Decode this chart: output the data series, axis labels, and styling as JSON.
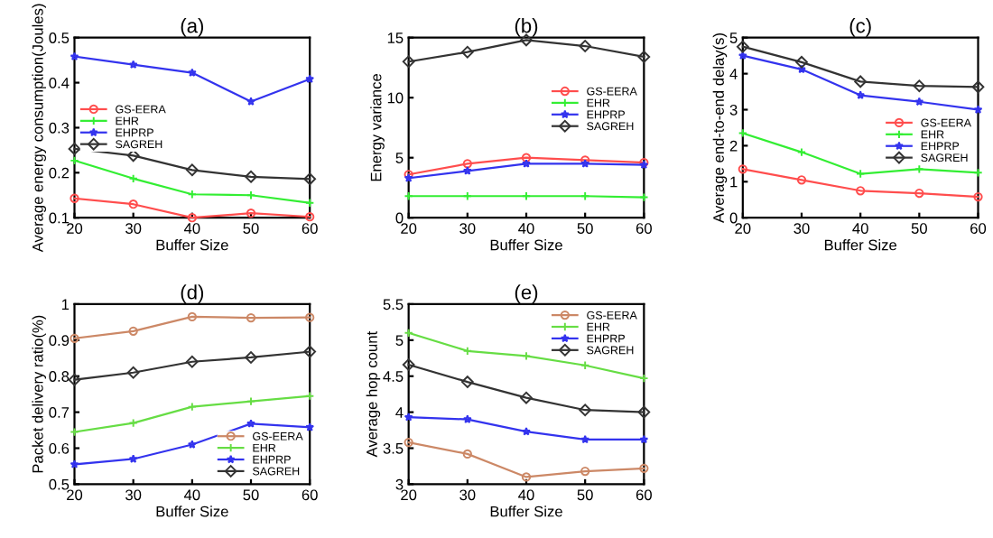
{
  "chart_data": [
    {
      "type": "line",
      "title": "(a)",
      "xlabel": "Buffer Size",
      "ylabel": "Average energy consumption(Joules)",
      "x": [
        20,
        30,
        40,
        50,
        60
      ],
      "xlim": [
        20,
        60
      ],
      "xticks": [
        20,
        30,
        40,
        50,
        60
      ],
      "ylim": [
        0.1,
        0.5
      ],
      "yticks": [
        0.1,
        0.2,
        0.3,
        0.4,
        0.5
      ],
      "legend": "left",
      "grid": false,
      "series": [
        {
          "name": "GS-EERA",
          "color": "#ff4d4d",
          "marker": "circle",
          "values": [
            0.143,
            0.13,
            0.1,
            0.11,
            0.102
          ]
        },
        {
          "name": "EHR",
          "color": "#33ee33",
          "marker": "cross",
          "values": [
            0.227,
            0.187,
            0.152,
            0.15,
            0.133
          ]
        },
        {
          "name": "EHPRP",
          "color": "#3333ee",
          "marker": "star",
          "values": [
            0.458,
            0.44,
            0.422,
            0.358,
            0.408
          ]
        },
        {
          "name": "SAGREH",
          "color": "#333333",
          "marker": "diamond",
          "values": [
            0.253,
            0.238,
            0.206,
            0.191,
            0.186
          ]
        }
      ]
    },
    {
      "type": "line",
      "title": "(b)",
      "xlabel": "Buffer Size",
      "ylabel": "Energy variance",
      "x": [
        20,
        30,
        40,
        50,
        60
      ],
      "xlim": [
        20,
        60
      ],
      "xticks": [
        20,
        30,
        40,
        50,
        60
      ],
      "ylim": [
        0,
        15
      ],
      "yticks": [
        0,
        5,
        10,
        15
      ],
      "legend": "right",
      "grid": false,
      "series": [
        {
          "name": "GS-EERA",
          "color": "#ff4d4d",
          "marker": "circle",
          "values": [
            3.6,
            4.5,
            5.0,
            4.8,
            4.6
          ]
        },
        {
          "name": "EHR",
          "color": "#33ee33",
          "marker": "cross",
          "values": [
            1.8,
            1.8,
            1.8,
            1.8,
            1.7
          ]
        },
        {
          "name": "EHPRP",
          "color": "#3333ee",
          "marker": "star",
          "values": [
            3.3,
            3.9,
            4.5,
            4.5,
            4.4
          ]
        },
        {
          "name": "SAGREH",
          "color": "#333333",
          "marker": "diamond",
          "values": [
            13.0,
            13.8,
            14.8,
            14.3,
            13.4
          ]
        }
      ]
    },
    {
      "type": "line",
      "title": "(c)",
      "xlabel": "Buffer Size",
      "ylabel": "Average end-to-end delay(s)",
      "x": [
        20,
        30,
        40,
        50,
        60
      ],
      "xlim": [
        20,
        60
      ],
      "xticks": [
        20,
        30,
        40,
        50,
        60
      ],
      "ylim": [
        0,
        5
      ],
      "yticks": [
        0,
        1,
        2,
        3,
        4,
        5
      ],
      "legend": "right",
      "grid": false,
      "series": [
        {
          "name": "GS-EERA",
          "color": "#ff4d4d",
          "marker": "circle",
          "values": [
            1.35,
            1.05,
            0.75,
            0.68,
            0.58
          ]
        },
        {
          "name": "EHR",
          "color": "#33ee33",
          "marker": "cross",
          "values": [
            2.35,
            1.82,
            1.22,
            1.35,
            1.25
          ]
        },
        {
          "name": "EHPRP",
          "color": "#3333ee",
          "marker": "star",
          "values": [
            4.5,
            4.12,
            3.4,
            3.22,
            3.0
          ]
        },
        {
          "name": "SAGREH",
          "color": "#333333",
          "marker": "diamond",
          "values": [
            4.75,
            4.32,
            3.78,
            3.66,
            3.63
          ]
        }
      ]
    },
    {
      "type": "line",
      "title": "(d)",
      "xlabel": "Buffer Size",
      "ylabel": "Packet delivery ratio(%)",
      "x": [
        20,
        30,
        40,
        50,
        60
      ],
      "xlim": [
        20,
        60
      ],
      "xticks": [
        20,
        30,
        40,
        50,
        60
      ],
      "ylim": [
        0.5,
        1
      ],
      "yticks": [
        0.5,
        0.6,
        0.7,
        0.8,
        0.9,
        1
      ],
      "legend": "bottom right",
      "grid": false,
      "series": [
        {
          "name": "GS-EERA",
          "color": "#cc8866",
          "marker": "circle",
          "values": [
            0.905,
            0.925,
            0.965,
            0.962,
            0.963
          ]
        },
        {
          "name": "EHR",
          "color": "#66dd44",
          "marker": "cross",
          "values": [
            0.645,
            0.67,
            0.715,
            0.73,
            0.745
          ]
        },
        {
          "name": "EHPRP",
          "color": "#3333ee",
          "marker": "star",
          "values": [
            0.555,
            0.57,
            0.61,
            0.668,
            0.658
          ]
        },
        {
          "name": "SAGREH",
          "color": "#333333",
          "marker": "diamond",
          "values": [
            0.79,
            0.81,
            0.84,
            0.852,
            0.868
          ]
        }
      ]
    },
    {
      "type": "line",
      "title": "(e)",
      "xlabel": "Buffer Size",
      "ylabel": "Average hop count",
      "x": [
        20,
        30,
        40,
        50,
        60
      ],
      "xlim": [
        20,
        60
      ],
      "xticks": [
        20,
        30,
        40,
        50,
        60
      ],
      "ylim": [
        3,
        5.5
      ],
      "yticks": [
        3,
        3.5,
        4,
        4.5,
        5,
        5.5
      ],
      "legend": "top right",
      "grid": false,
      "series": [
        {
          "name": "GS-EERA",
          "color": "#cc8866",
          "marker": "circle",
          "values": [
            3.58,
            3.42,
            3.1,
            3.18,
            3.22
          ]
        },
        {
          "name": "EHR",
          "color": "#66dd44",
          "marker": "cross",
          "values": [
            5.1,
            4.85,
            4.78,
            4.65,
            4.47
          ]
        },
        {
          "name": "EHPRP",
          "color": "#3333ee",
          "marker": "star",
          "values": [
            3.93,
            3.9,
            3.73,
            3.62,
            3.62
          ]
        },
        {
          "name": "SAGREH",
          "color": "#333333",
          "marker": "diamond",
          "values": [
            4.66,
            4.42,
            4.2,
            4.03,
            4.0
          ]
        }
      ]
    }
  ]
}
